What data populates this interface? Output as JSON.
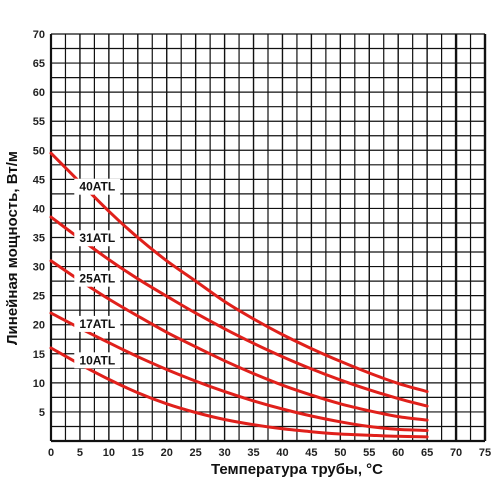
{
  "chart_data": {
    "type": "line",
    "title": "",
    "xlabel": "Температура трубы, °C",
    "ylabel": "Линейная мощность, Вт/м",
    "xlim": [
      0,
      75
    ],
    "ylim": [
      0,
      70
    ],
    "x_ticks": [
      0,
      5,
      10,
      15,
      20,
      25,
      30,
      35,
      40,
      45,
      50,
      55,
      60,
      65,
      70,
      75
    ],
    "y_ticks": [
      5,
      10,
      15,
      20,
      25,
      30,
      35,
      40,
      45,
      50,
      55,
      60,
      65,
      70
    ],
    "grid": true,
    "line_color": "#e0201b",
    "series": [
      {
        "name": "40ATL",
        "x": [
          0,
          5,
          10,
          15,
          20,
          25,
          30,
          35,
          40,
          45,
          50,
          55,
          60,
          65
        ],
        "y": [
          49.5,
          44.5,
          39.5,
          35,
          31,
          27.5,
          24,
          21,
          18.3,
          15.9,
          13.7,
          11.7,
          9.9,
          8.5
        ]
      },
      {
        "name": "31ATL",
        "x": [
          0,
          5,
          10,
          15,
          20,
          25,
          30,
          35,
          40,
          45,
          50,
          55,
          60,
          65
        ],
        "y": [
          38.5,
          34.8,
          31.2,
          27.9,
          24.9,
          22,
          19.3,
          16.8,
          14.5,
          12.4,
          10.5,
          8.8,
          7.3,
          6
        ]
      },
      {
        "name": "25ATL",
        "x": [
          0,
          5,
          10,
          15,
          20,
          25,
          30,
          35,
          40,
          45,
          50,
          55,
          60,
          65
        ],
        "y": [
          31,
          27.6,
          24.4,
          21.5,
          18.7,
          16.2,
          13.8,
          11.6,
          9.6,
          7.9,
          6.4,
          5.2,
          4.2,
          3.6
        ]
      },
      {
        "name": "17ATL",
        "x": [
          0,
          5,
          10,
          15,
          20,
          25,
          30,
          35,
          40,
          45,
          50,
          55,
          60,
          65
        ],
        "y": [
          22,
          19.4,
          16.9,
          14.5,
          12.3,
          10.3,
          8.5,
          6.9,
          5.5,
          4.3,
          3.3,
          2.5,
          2,
          1.8
        ]
      },
      {
        "name": "10ATL",
        "x": [
          0,
          5,
          10,
          15,
          20,
          25,
          30,
          35,
          40,
          45,
          50,
          55,
          60,
          65
        ],
        "y": [
          16,
          13.2,
          10.6,
          8.3,
          6.4,
          4.9,
          3.7,
          2.8,
          2.1,
          1.6,
          1.2,
          1,
          0.8,
          0.7
        ]
      }
    ]
  }
}
